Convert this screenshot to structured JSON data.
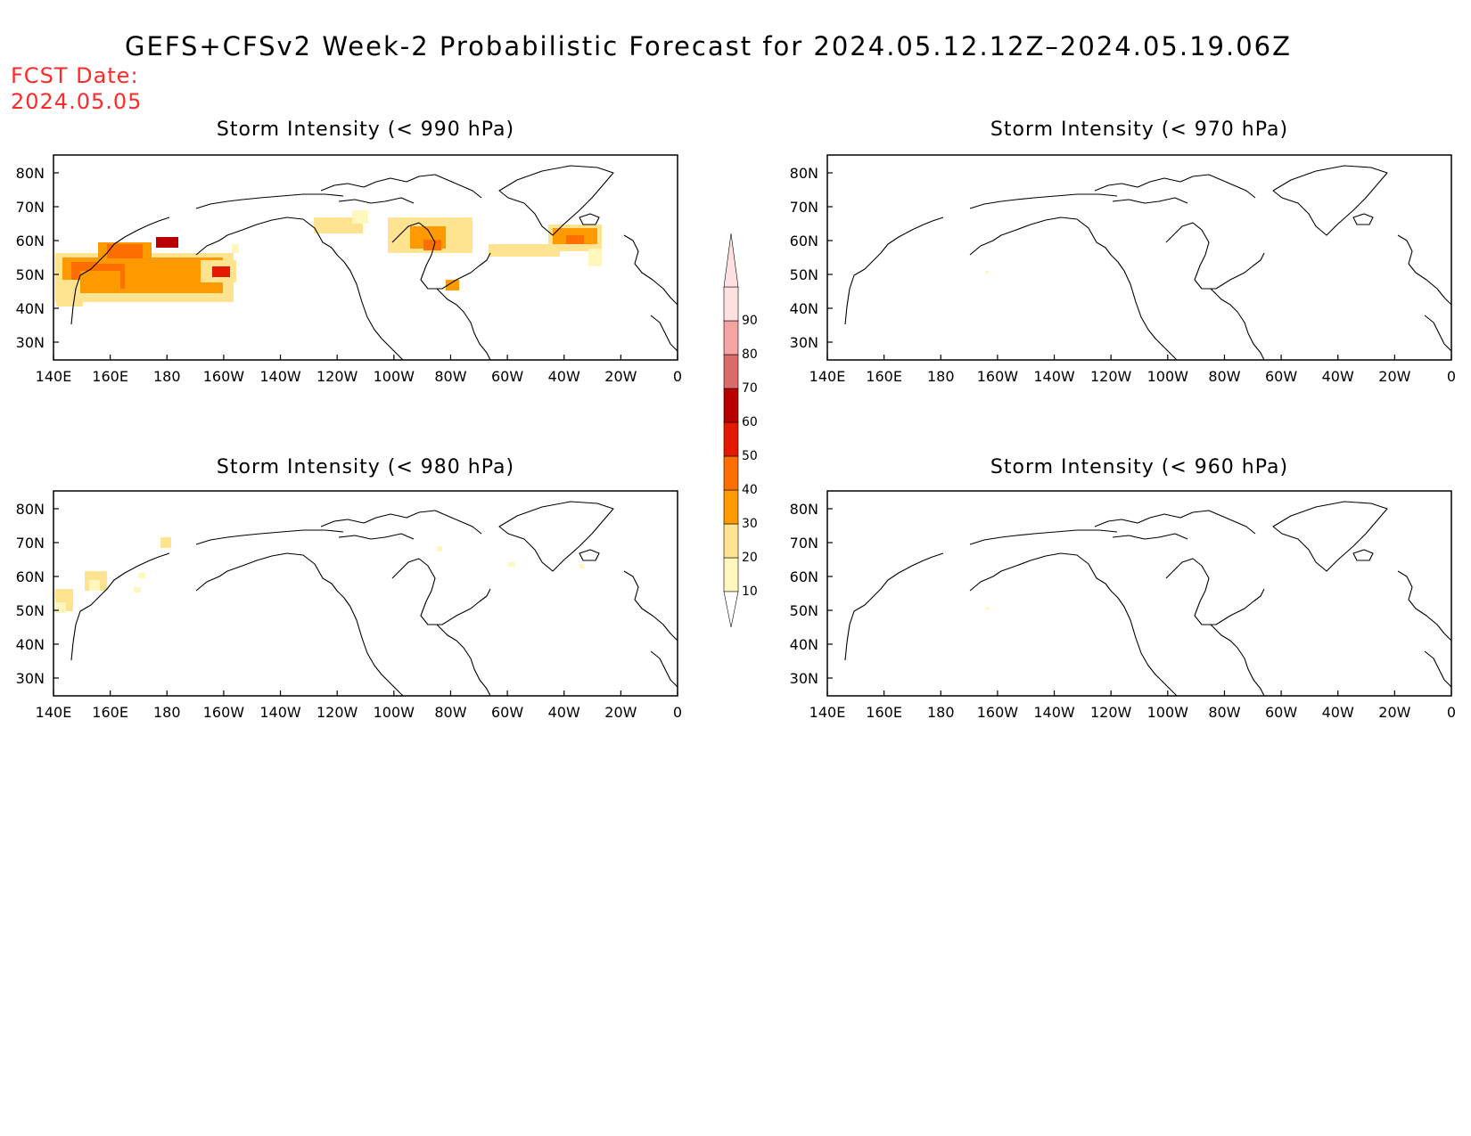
{
  "title": "GEFS+CFSv2 Week-2 Probabilistic Forecast for 2024.05.12.12Z–2024.05.19.06Z",
  "fcst_date_label": "FCST Date:",
  "fcst_date": "2024.05.05",
  "lat_ticks": [
    "80N",
    "70N",
    "60N",
    "50N",
    "40N",
    "30N"
  ],
  "lon_ticks": [
    "140E",
    "160E",
    "180",
    "160W",
    "140W",
    "120W",
    "100W",
    "80W",
    "60W",
    "40W",
    "20W",
    "0"
  ],
  "colorbar": {
    "levels": [
      "10",
      "20",
      "30",
      "40",
      "50",
      "60",
      "70",
      "80",
      "90"
    ],
    "colors": [
      "#fff7bc",
      "#fee391",
      "#fe9900",
      "#fe6f00",
      "#e31a00",
      "#b80000",
      "#de6b6b",
      "#f5a3a3",
      "#fde0e0"
    ]
  },
  "panels": [
    {
      "title": "Storm Intensity (< 990 hPa)"
    },
    {
      "title": "Storm Intensity (< 970 hPa)"
    },
    {
      "title": "Storm Intensity (< 980 hPa)"
    },
    {
      "title": "Storm Intensity (< 960 hPa)"
    }
  ]
}
